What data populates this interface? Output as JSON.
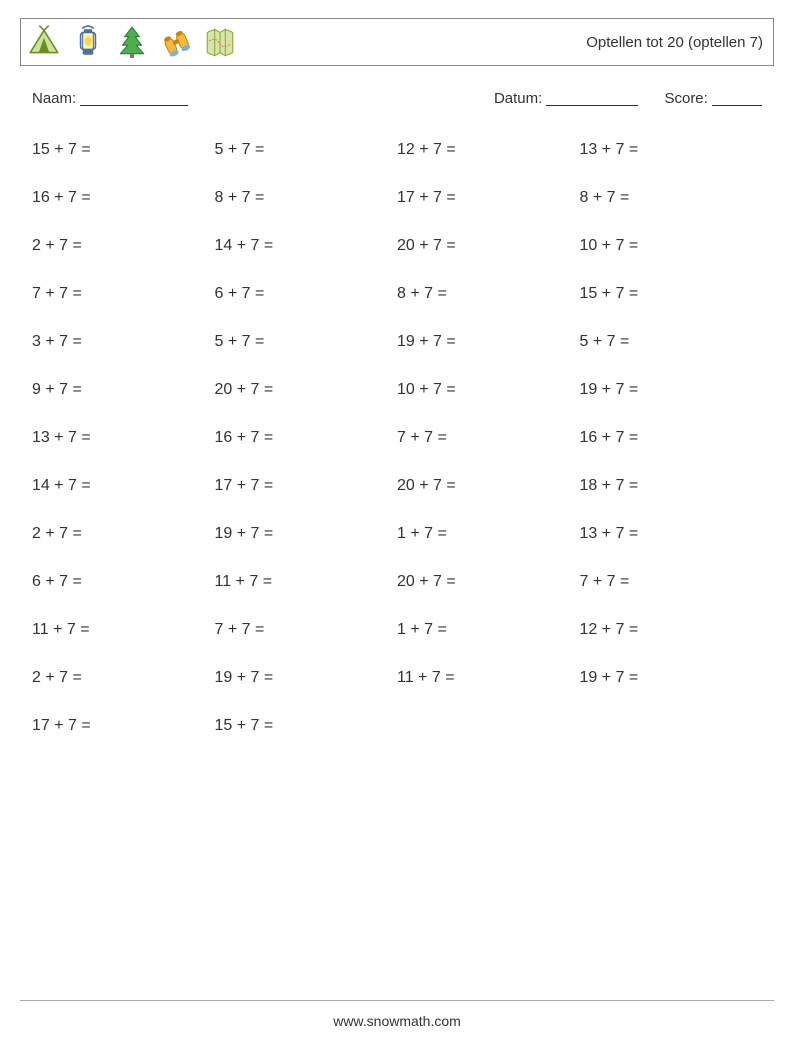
{
  "header": {
    "title": "Optellen tot 20 (optellen 7)",
    "icons": [
      "tent-icon",
      "lantern-icon",
      "tree-icon",
      "binoculars-icon",
      "map-icon"
    ]
  },
  "meta": {
    "name_label": "Naam:",
    "name_blank_width": 108,
    "date_label": "Datum:",
    "date_blank_width": 92,
    "score_label": "Score:",
    "score_blank_width": 50
  },
  "style": {
    "text_color": "#333333",
    "border_color": "#888888",
    "footer_border_color": "#aaaaaa",
    "background_color": "#ffffff",
    "problem_fontsize": 16,
    "meta_fontsize": 15,
    "title_fontsize": 15,
    "footer_fontsize": 14,
    "columns": 4,
    "row_gap": 30
  },
  "problems": {
    "addend": 7,
    "operator": "+",
    "equals": "=",
    "rows": [
      [
        15,
        5,
        12,
        13
      ],
      [
        16,
        8,
        17,
        8
      ],
      [
        2,
        14,
        20,
        10
      ],
      [
        7,
        6,
        8,
        15
      ],
      [
        3,
        5,
        19,
        5
      ],
      [
        9,
        20,
        10,
        19
      ],
      [
        13,
        16,
        7,
        16
      ],
      [
        14,
        17,
        20,
        18
      ],
      [
        2,
        19,
        1,
        13
      ],
      [
        6,
        11,
        20,
        7
      ],
      [
        11,
        7,
        1,
        12
      ],
      [
        2,
        19,
        11,
        19
      ],
      [
        17,
        15,
        null,
        null
      ]
    ]
  },
  "footer": {
    "text": "www.snowmath.com"
  }
}
